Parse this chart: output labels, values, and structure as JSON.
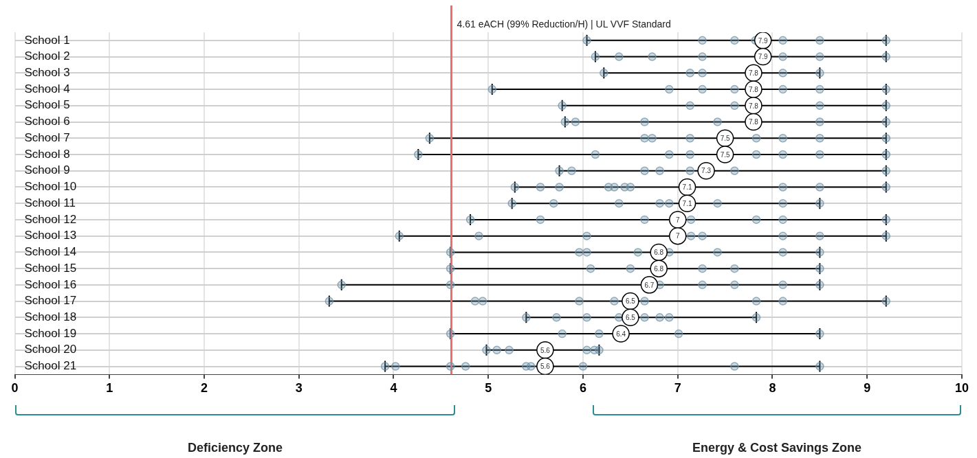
{
  "chart_data": {
    "type": "scatter",
    "orientation": "horizontal",
    "marker": "circle",
    "grid": true,
    "categories": [
      "School 1",
      "School 2",
      "School 3",
      "School 4",
      "School 5",
      "School 6",
      "School 7",
      "School 8",
      "School 9",
      "School 10",
      "School 11",
      "School 12",
      "School 13",
      "School 14",
      "School 15",
      "School 16",
      "School 17",
      "School 18",
      "School 19",
      "School 20",
      "School 21"
    ],
    "xlim": [
      0,
      10
    ],
    "xticks": [
      0,
      1,
      2,
      3,
      4,
      5,
      6,
      7,
      8,
      9,
      10
    ],
    "series": [
      {
        "color": "#6f93aa",
        "x": [
          "School 1",
          "School 1",
          "School 1",
          "School 1",
          "School 1",
          "School 1",
          "School 1",
          "School 2",
          "School 2",
          "School 2",
          "School 2",
          "School 2",
          "School 2",
          "School 2",
          "School 3",
          "School 3",
          "School 3",
          "School 3",
          "School 3",
          "School 4",
          "School 4",
          "School 4",
          "School 4",
          "School 4",
          "School 4",
          "School 4",
          "School 5",
          "School 5",
          "School 5",
          "School 5",
          "School 5",
          "School 6",
          "School 6",
          "School 6",
          "School 6",
          "School 6",
          "School 6",
          "School 7",
          "School 7",
          "School 7",
          "School 7",
          "School 7",
          "School 7",
          "School 7",
          "School 7",
          "School 8",
          "School 8",
          "School 8",
          "School 8",
          "School 8",
          "School 8",
          "School 8",
          "School 8",
          "School 9",
          "School 9",
          "School 9",
          "School 9",
          "School 9",
          "School 9",
          "School 9",
          "School 10",
          "School 10",
          "School 10",
          "School 10",
          "School 10",
          "School 10",
          "School 10",
          "School 10",
          "School 10",
          "School 10",
          "School 11",
          "School 11",
          "School 11",
          "School 11",
          "School 11",
          "School 11",
          "School 11",
          "School 11",
          "School 12",
          "School 12",
          "School 12",
          "School 12",
          "School 12",
          "School 12",
          "School 12",
          "School 13",
          "School 13",
          "School 13",
          "School 13",
          "School 13",
          "School 13",
          "School 13",
          "School 13",
          "School 14",
          "School 14",
          "School 14",
          "School 14",
          "School 14",
          "School 14",
          "School 14",
          "School 14",
          "School 15",
          "School 15",
          "School 15",
          "School 15",
          "School 15",
          "School 15",
          "School 16",
          "School 16",
          "School 16",
          "School 16",
          "School 16",
          "School 16",
          "School 16",
          "School 17",
          "School 17",
          "School 17",
          "School 17",
          "School 17",
          "School 17",
          "School 17",
          "School 17",
          "School 17",
          "School 18",
          "School 18",
          "School 18",
          "School 18",
          "School 18",
          "School 18",
          "School 18",
          "School 18",
          "School 19",
          "School 19",
          "School 19",
          "School 19",
          "School 19",
          "School 20",
          "School 20",
          "School 20",
          "School 20",
          "School 20",
          "School 20",
          "School 21",
          "School 21",
          "School 21",
          "School 21",
          "School 21",
          "School 21",
          "School 21",
          "School 21",
          "School 21"
        ],
        "values": [
          6.04,
          7.26,
          7.6,
          7.82,
          8.11,
          8.5,
          9.2,
          6.13,
          6.38,
          6.73,
          7.26,
          8.11,
          8.5,
          9.2,
          6.22,
          7.13,
          7.26,
          8.11,
          8.5,
          5.04,
          6.91,
          7.26,
          7.6,
          8.11,
          8.5,
          9.2,
          5.78,
          7.13,
          7.6,
          8.5,
          9.2,
          5.81,
          5.92,
          6.65,
          7.42,
          8.5,
          9.2,
          4.38,
          6.65,
          6.73,
          7.13,
          7.83,
          8.11,
          8.5,
          9.2,
          4.26,
          6.13,
          6.91,
          7.13,
          7.83,
          8.11,
          8.5,
          9.2,
          5.75,
          5.88,
          6.65,
          6.81,
          7.13,
          7.6,
          9.2,
          5.28,
          5.55,
          5.75,
          6.27,
          6.33,
          6.44,
          6.5,
          8.11,
          8.5,
          9.2,
          5.25,
          5.69,
          6.38,
          6.81,
          6.91,
          7.42,
          8.11,
          8.5,
          4.81,
          5.55,
          6.65,
          7.14,
          7.83,
          8.11,
          9.2,
          4.06,
          4.9,
          6.04,
          7.14,
          7.26,
          8.11,
          8.5,
          9.2,
          4.6,
          5.96,
          6.04,
          6.58,
          6.91,
          7.42,
          8.11,
          8.5,
          4.6,
          6.08,
          6.5,
          7.26,
          7.6,
          8.5,
          3.45,
          4.6,
          6.81,
          7.26,
          7.6,
          8.11,
          8.5,
          3.32,
          4.86,
          4.94,
          5.96,
          6.33,
          6.65,
          7.83,
          8.11,
          9.2,
          5.4,
          5.72,
          6.04,
          6.38,
          6.65,
          6.81,
          6.91,
          7.83,
          4.6,
          5.78,
          6.17,
          7.01,
          8.5,
          4.98,
          5.09,
          5.22,
          6.04,
          6.12,
          6.17,
          3.91,
          4.02,
          4.6,
          4.76,
          5.4,
          5.45,
          6.0,
          7.6,
          8.5
        ]
      },
      {
        "color": "#000000",
        "values": [
          7.9,
          7.9,
          7.8,
          7.8,
          7.8,
          7.8,
          7.5,
          7.5,
          7.3,
          7.1,
          7.1,
          7,
          7,
          6.8,
          6.8,
          6.7,
          6.5,
          6.5,
          6.4,
          5.6,
          5.6
        ],
        "value_labels": [
          "7.9",
          "7.9",
          "7.8",
          "7.8",
          "7.8",
          "7.8",
          "7.5",
          "7.5",
          "7.3",
          "7.1",
          "7.1",
          "7",
          "7",
          "6.8",
          "6.8",
          "6.7",
          "6.5",
          "6.5",
          "6.4",
          "5.6",
          "5.6"
        ],
        "errors": [
          [
            6.04,
            9.2
          ],
          [
            6.13,
            9.2
          ],
          [
            6.22,
            8.5
          ],
          [
            5.04,
            9.2
          ],
          [
            5.78,
            9.2
          ],
          [
            5.81,
            9.2
          ],
          [
            4.38,
            9.2
          ],
          [
            4.26,
            9.2
          ],
          [
            5.75,
            9.2
          ],
          [
            5.28,
            9.2
          ],
          [
            5.25,
            8.5
          ],
          [
            4.81,
            9.2
          ],
          [
            4.06,
            9.2
          ],
          [
            4.6,
            8.5
          ],
          [
            4.6,
            8.5
          ],
          [
            3.45,
            8.5
          ],
          [
            3.32,
            9.2
          ],
          [
            5.4,
            7.83
          ],
          [
            4.6,
            8.5
          ],
          [
            4.98,
            6.17
          ],
          [
            3.91,
            8.5
          ]
        ]
      }
    ],
    "ref_lines": [
      {
        "axis": "x",
        "value": 4.61,
        "label": "4.61 eACH (99% Reduction/H) | UL VVF Standard",
        "color": "#f26b6b"
      }
    ],
    "annotations": [
      "Deficiency Zone",
      "Energy & Cost Savings Zone"
    ]
  }
}
